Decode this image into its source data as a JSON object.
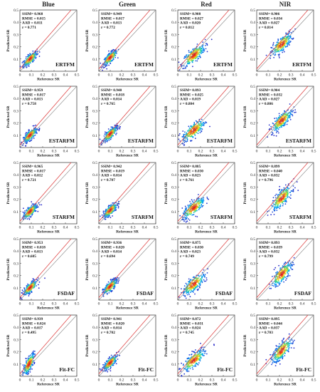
{
  "chart_data": {
    "type": "scatter",
    "columns": [
      "Blue",
      "Green",
      "Red",
      "NIR"
    ],
    "xlabel": "Reference SR",
    "ylabel": "Predicted SR",
    "xlim": [
      0,
      0.5
    ],
    "ylim": [
      0,
      0.5
    ],
    "xticks": [
      0,
      0.1,
      0.2,
      0.3,
      0.4,
      0.5
    ],
    "yticks": [
      0,
      0.1,
      0.2,
      0.3,
      0.4,
      0.5
    ],
    "reference_line": "1:1",
    "colors": {
      "line": "#e04a4a",
      "fit": "#888888"
    },
    "rows": [
      {
        "method": "ERTFM",
        "panels": [
          {
            "band": "Blue",
            "ssim": 0.968,
            "rmse": 0.015,
            "aad": 0.011,
            "r": 0.771,
            "center": [
              0.09,
              0.1
            ],
            "spread": [
              0.03,
              0.03
            ]
          },
          {
            "band": "Green",
            "ssim": 0.949,
            "rmse": 0.017,
            "aad": 0.013,
            "r": 0.772,
            "center": [
              0.1,
              0.11
            ],
            "spread": [
              0.03,
              0.03
            ]
          },
          {
            "band": "Red",
            "ssim": 0.908,
            "rmse": 0.027,
            "aad": 0.02,
            "r": 0.812,
            "center": [
              0.14,
              0.13
            ],
            "spread": [
              0.05,
              0.045
            ]
          },
          {
            "band": "NIR",
            "ssim": 0.906,
            "rmse": 0.034,
            "aad": 0.027,
            "r": 0.814,
            "center": [
              0.22,
              0.22
            ],
            "spread": [
              0.045,
              0.045
            ]
          }
        ]
      },
      {
        "method": "ESTARFM",
        "panels": [
          {
            "band": "Blue",
            "ssim": 0.959,
            "rmse": 0.017,
            "aad": 0.013,
            "r": 0.758,
            "center": [
              0.09,
              0.1
            ],
            "spread": [
              0.03,
              0.03
            ]
          },
          {
            "band": "Green",
            "ssim": 0.94,
            "rmse": 0.018,
            "aad": 0.014,
            "r": 0.765,
            "center": [
              0.1,
              0.11
            ],
            "spread": [
              0.03,
              0.03
            ]
          },
          {
            "band": "Red",
            "ssim": 0.893,
            "rmse": 0.025,
            "aad": 0.019,
            "r": 0.804,
            "center": [
              0.14,
              0.14
            ],
            "spread": [
              0.05,
              0.045
            ]
          },
          {
            "band": "NIR",
            "ssim": 0.904,
            "rmse": 0.032,
            "aad": 0.027,
            "r": 0.806,
            "center": [
              0.22,
              0.22
            ],
            "spread": [
              0.045,
              0.045
            ]
          }
        ]
      },
      {
        "method": "STARFM",
        "panels": [
          {
            "band": "Blue",
            "ssim": 0.965,
            "rmse": 0.017,
            "aad": 0.012,
            "r": 0.721,
            "center": [
              0.09,
              0.1
            ],
            "spread": [
              0.03,
              0.03
            ]
          },
          {
            "band": "Green",
            "ssim": 0.942,
            "rmse": 0.019,
            "aad": 0.014,
            "r": 0.707,
            "center": [
              0.1,
              0.11
            ],
            "spread": [
              0.03,
              0.03
            ]
          },
          {
            "band": "Red",
            "ssim": 0.885,
            "rmse": 0.03,
            "aad": 0.023,
            "r": 0.761,
            "center": [
              0.14,
              0.13
            ],
            "spread": [
              0.05,
              0.045
            ]
          },
          {
            "band": "NIR",
            "ssim": 0.899,
            "rmse": 0.04,
            "aad": 0.032,
            "r": 0.796,
            "center": [
              0.22,
              0.21
            ],
            "spread": [
              0.045,
              0.05
            ]
          }
        ]
      },
      {
        "method": "FSDAF",
        "panels": [
          {
            "band": "Blue",
            "ssim": 0.953,
            "rmse": 0.018,
            "aad": 0.013,
            "r": 0.685,
            "center": [
              0.09,
              0.1
            ],
            "spread": [
              0.03,
              0.03
            ]
          },
          {
            "band": "Green",
            "ssim": 0.936,
            "rmse": 0.02,
            "aad": 0.014,
            "r": 0.694,
            "center": [
              0.1,
              0.11
            ],
            "spread": [
              0.03,
              0.03
            ]
          },
          {
            "band": "Red",
            "ssim": 0.875,
            "rmse": 0.03,
            "aad": 0.023,
            "r": 0.749,
            "center": [
              0.14,
              0.13
            ],
            "spread": [
              0.05,
              0.045
            ]
          },
          {
            "band": "NIR",
            "ssim": 0.893,
            "rmse": 0.039,
            "aad": 0.032,
            "r": 0.799,
            "center": [
              0.22,
              0.21
            ],
            "spread": [
              0.045,
              0.05
            ]
          }
        ]
      },
      {
        "method": "Fit-FC",
        "panels": [
          {
            "band": "Blue",
            "ssim": 0.939,
            "rmse": 0.024,
            "aad": 0.017,
            "r": 0.495,
            "center": [
              0.08,
              0.1
            ],
            "spread": [
              0.025,
              0.045
            ]
          },
          {
            "band": "Green",
            "ssim": 0.941,
            "rmse": 0.02,
            "aad": 0.014,
            "r": 0.702,
            "center": [
              0.1,
              0.11
            ],
            "spread": [
              0.03,
              0.03
            ]
          },
          {
            "band": "Red",
            "ssim": 0.872,
            "rmse": 0.031,
            "aad": 0.024,
            "r": 0.745,
            "center": [
              0.14,
              0.13
            ],
            "spread": [
              0.05,
              0.045
            ]
          },
          {
            "band": "NIR",
            "ssim": 0.895,
            "rmse": 0.044,
            "aad": 0.037,
            "r": 0.703,
            "center": [
              0.22,
              0.21
            ],
            "spread": [
              0.045,
              0.05
            ]
          }
        ]
      }
    ]
  }
}
